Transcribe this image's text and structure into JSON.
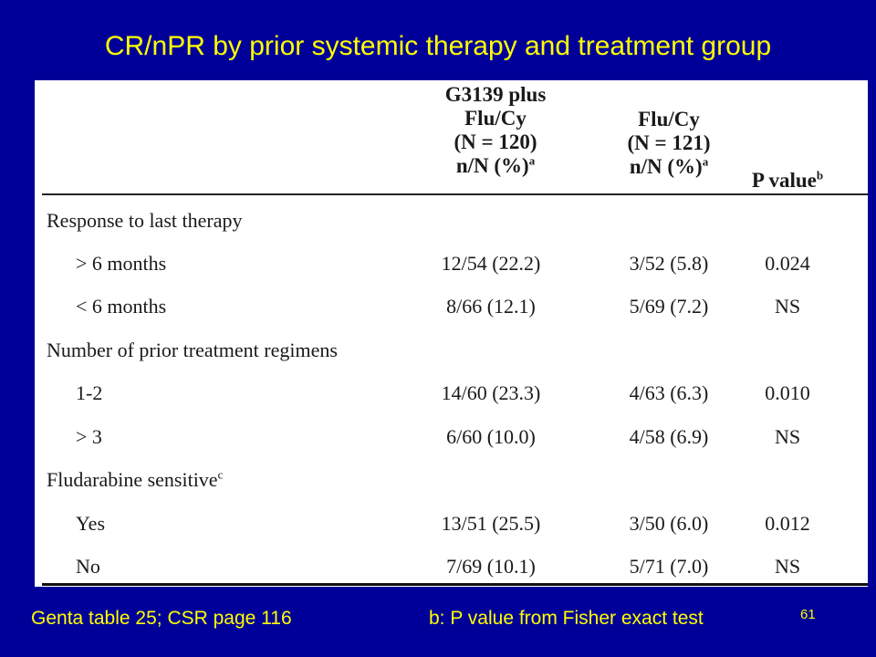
{
  "title": "CR/nPR by prior systemic therapy and treatment group",
  "table": {
    "headers": [
      {
        "lines": [
          "G3139 plus",
          "Flu/Cy",
          "(N = 120)",
          "n/N (%)"
        ],
        "sup": "a"
      },
      {
        "lines": [
          "Flu/Cy",
          "(N = 121)",
          "n/N (%)"
        ],
        "sup": "a"
      },
      {
        "lines": [
          "P value"
        ],
        "sup": "b"
      }
    ],
    "rows": [
      {
        "label": "Response to last therapy",
        "indent": false,
        "sup": "",
        "values": [
          "",
          "",
          ""
        ]
      },
      {
        "label": "> 6 months",
        "indent": true,
        "sup": "",
        "values": [
          "12/54 (22.2)",
          "3/52 (5.8)",
          "0.024"
        ]
      },
      {
        "label": "< 6 months",
        "indent": true,
        "sup": "",
        "values": [
          "8/66 (12.1)",
          "5/69 (7.2)",
          "NS"
        ]
      },
      {
        "label": "Number of prior treatment regimens",
        "indent": false,
        "sup": "",
        "values": [
          "",
          "",
          ""
        ]
      },
      {
        "label": "1-2",
        "indent": true,
        "sup": "",
        "values": [
          "14/60 (23.3)",
          "4/63 (6.3)",
          "0.010"
        ]
      },
      {
        "label": "> 3",
        "indent": true,
        "sup": "",
        "values": [
          "6/60 (10.0)",
          "4/58 (6.9)",
          "NS"
        ]
      },
      {
        "label": "Fludarabine sensitive",
        "indent": false,
        "sup": "c",
        "values": [
          "",
          "",
          ""
        ]
      },
      {
        "label": "Yes",
        "indent": true,
        "sup": "",
        "values": [
          "13/51 (25.5)",
          "3/50 (6.0)",
          "0.012"
        ]
      },
      {
        "label": "No",
        "indent": true,
        "sup": "",
        "values": [
          "7/69 (10.1)",
          "5/71 (7.0)",
          "NS"
        ]
      }
    ]
  },
  "footer": {
    "left": "Genta table 25; CSR page 116",
    "right": "b: P value from Fisher exact test",
    "page_number": "61"
  },
  "colors": {
    "background": "#000099",
    "title_text": "#FFFF00",
    "table_background": "#FFFFFF"
  }
}
